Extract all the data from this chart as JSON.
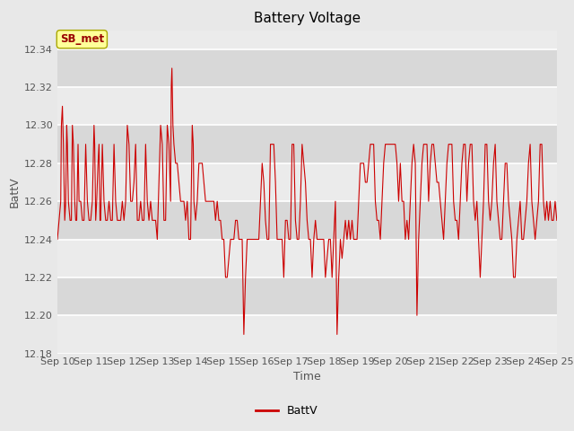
{
  "title": "Battery Voltage",
  "xlabel": "Time",
  "ylabel": "BattV",
  "legend_label": "BattV",
  "annotation_text": "SB_met",
  "ylim": [
    12.18,
    12.35
  ],
  "line_color": "#cc0000",
  "bg_color": "#e0e0e0",
  "band_light": "#ebebeb",
  "band_dark": "#d8d8d8",
  "annotation_bg": "#ffff99",
  "annotation_border": "#aaa800",
  "annotation_text_color": "#990000",
  "yticks": [
    12.18,
    12.2,
    12.22,
    12.24,
    12.26,
    12.28,
    12.3,
    12.32,
    12.34
  ],
  "x_tick_labels": [
    "Sep 10",
    "Sep 11",
    "Sep 12",
    "Sep 13",
    "Sep 14",
    "Sep 15",
    "Sep 16",
    "Sep 17",
    "Sep 18",
    "Sep 19",
    "Sep 20",
    "Sep 21",
    "Sep 22",
    "Sep 23",
    "Sep 24",
    "Sep 25"
  ],
  "x_values": [
    0,
    0.05,
    0.1,
    0.12,
    0.15,
    0.18,
    0.22,
    0.25,
    0.28,
    0.3,
    0.33,
    0.38,
    0.42,
    0.45,
    0.48,
    0.52,
    0.55,
    0.58,
    0.62,
    0.65,
    0.7,
    0.75,
    0.8,
    0.85,
    0.9,
    0.95,
    1.0,
    1.05,
    1.1,
    1.12,
    1.15,
    1.18,
    1.22,
    1.25,
    1.28,
    1.3,
    1.35,
    1.4,
    1.45,
    1.5,
    1.55,
    1.6,
    1.65,
    1.7,
    1.75,
    1.8,
    1.85,
    1.9,
    1.95,
    2.0,
    2.05,
    2.1,
    2.15,
    2.2,
    2.25,
    2.3,
    2.35,
    2.4,
    2.45,
    2.5,
    2.55,
    2.6,
    2.65,
    2.7,
    2.75,
    2.8,
    2.85,
    2.9,
    2.95,
    3.0,
    3.05,
    3.1,
    3.15,
    3.2,
    3.25,
    3.3,
    3.35,
    3.4,
    3.42,
    3.44,
    3.47,
    3.5,
    3.55,
    3.6,
    3.65,
    3.7,
    3.75,
    3.8,
    3.85,
    3.9,
    3.95,
    4.0,
    4.05,
    4.08,
    4.1,
    4.15,
    4.2,
    4.25,
    4.3,
    4.35,
    4.4,
    4.45,
    4.5,
    4.55,
    4.6,
    4.65,
    4.7,
    4.75,
    4.8,
    4.85,
    4.9,
    4.95,
    5.0,
    5.05,
    5.1,
    5.15,
    5.2,
    5.25,
    5.3,
    5.35,
    5.4,
    5.45,
    5.5,
    5.55,
    5.6,
    5.65,
    5.7,
    5.75,
    5.8,
    5.85,
    5.9,
    5.95,
    6.0,
    6.05,
    6.1,
    6.15,
    6.2,
    6.25,
    6.3,
    6.35,
    6.4,
    6.45,
    6.5,
    6.55,
    6.6,
    6.65,
    6.7,
    6.75,
    6.8,
    6.85,
    6.9,
    6.95,
    7.0,
    7.05,
    7.1,
    7.15,
    7.2,
    7.25,
    7.3,
    7.35,
    7.4,
    7.45,
    7.5,
    7.55,
    7.6,
    7.65,
    7.7,
    7.75,
    7.8,
    7.85,
    7.9,
    7.95,
    8.0,
    8.05,
    8.1,
    8.15,
    8.2,
    8.25,
    8.3,
    8.35,
    8.4,
    8.45,
    8.5,
    8.55,
    8.6,
    8.65,
    8.7,
    8.75,
    8.8,
    8.85,
    8.9,
    8.95,
    9.0,
    9.05,
    9.1,
    9.15,
    9.2,
    9.25,
    9.3,
    9.35,
    9.4,
    9.45,
    9.5,
    9.55,
    9.6,
    9.65,
    9.7,
    9.75,
    9.8,
    9.85,
    9.9,
    9.95,
    10.0,
    10.05,
    10.1,
    10.15,
    10.2,
    10.25,
    10.3,
    10.35,
    10.4,
    10.45,
    10.5,
    10.55,
    10.6,
    10.65,
    10.7,
    10.75,
    10.8,
    10.85,
    10.9,
    10.95,
    11.0,
    11.05,
    11.1,
    11.15,
    11.2,
    11.25,
    11.3,
    11.35,
    11.4,
    11.45,
    11.5,
    11.55,
    11.6,
    11.65,
    11.7,
    11.75,
    11.8,
    11.85,
    11.9,
    11.95,
    12.0,
    12.05,
    12.1,
    12.15,
    12.2,
    12.25,
    12.3,
    12.35,
    12.4,
    12.45,
    12.5,
    12.55,
    12.6,
    12.65,
    12.7,
    12.75,
    12.8,
    12.85,
    12.9,
    12.95,
    13.0,
    13.05,
    13.1,
    13.15,
    13.2,
    13.25,
    13.3,
    13.35,
    13.4,
    13.45,
    13.5,
    13.55,
    13.6,
    13.65,
    13.7,
    13.75,
    13.8,
    13.85,
    13.9,
    13.95,
    14.0,
    14.05,
    14.1,
    14.15,
    14.2,
    14.25,
    14.3,
    14.35,
    14.4,
    14.45,
    14.5,
    14.55,
    14.6,
    14.65,
    14.7,
    14.75,
    14.8,
    14.85,
    14.9,
    14.95,
    15.0
  ],
  "y_values": [
    12.24,
    12.25,
    12.26,
    12.3,
    12.31,
    12.29,
    12.25,
    12.26,
    12.3,
    12.29,
    12.26,
    12.25,
    12.25,
    12.3,
    12.29,
    12.26,
    12.25,
    12.25,
    12.29,
    12.26,
    12.26,
    12.25,
    12.25,
    12.29,
    12.26,
    12.25,
    12.25,
    12.26,
    12.3,
    12.29,
    12.25,
    12.26,
    12.28,
    12.29,
    12.25,
    12.25,
    12.29,
    12.26,
    12.25,
    12.25,
    12.26,
    12.25,
    12.25,
    12.29,
    12.26,
    12.25,
    12.25,
    12.25,
    12.26,
    12.25,
    12.26,
    12.3,
    12.29,
    12.26,
    12.26,
    12.27,
    12.29,
    12.25,
    12.25,
    12.26,
    12.25,
    12.25,
    12.29,
    12.26,
    12.25,
    12.26,
    12.25,
    12.25,
    12.25,
    12.24,
    12.27,
    12.3,
    12.29,
    12.25,
    12.25,
    12.3,
    12.29,
    12.26,
    12.32,
    12.33,
    12.3,
    12.29,
    12.28,
    12.28,
    12.27,
    12.26,
    12.26,
    12.26,
    12.25,
    12.26,
    12.24,
    12.24,
    12.3,
    12.29,
    12.26,
    12.25,
    12.26,
    12.28,
    12.28,
    12.28,
    12.27,
    12.26,
    12.26,
    12.26,
    12.26,
    12.26,
    12.26,
    12.25,
    12.26,
    12.25,
    12.25,
    12.24,
    12.24,
    12.22,
    12.22,
    12.23,
    12.24,
    12.24,
    12.24,
    12.25,
    12.25,
    12.24,
    12.24,
    12.24,
    12.19,
    12.22,
    12.24,
    12.24,
    12.24,
    12.24,
    12.24,
    12.24,
    12.24,
    12.24,
    12.26,
    12.28,
    12.27,
    12.25,
    12.24,
    12.24,
    12.29,
    12.29,
    12.29,
    12.27,
    12.24,
    12.24,
    12.24,
    12.24,
    12.22,
    12.25,
    12.25,
    12.24,
    12.24,
    12.29,
    12.29,
    12.25,
    12.24,
    12.24,
    12.26,
    12.29,
    12.28,
    12.27,
    12.25,
    12.24,
    12.24,
    12.22,
    12.24,
    12.25,
    12.24,
    12.24,
    12.24,
    12.24,
    12.24,
    12.22,
    12.23,
    12.24,
    12.24,
    12.22,
    12.24,
    12.26,
    12.19,
    12.22,
    12.24,
    12.23,
    12.24,
    12.25,
    12.24,
    12.25,
    12.24,
    12.25,
    12.24,
    12.24,
    12.24,
    12.26,
    12.28,
    12.28,
    12.28,
    12.27,
    12.27,
    12.28,
    12.29,
    12.29,
    12.29,
    12.26,
    12.25,
    12.25,
    12.24,
    12.26,
    12.28,
    12.29,
    12.29,
    12.29,
    12.29,
    12.29,
    12.29,
    12.29,
    12.28,
    12.26,
    12.28,
    12.26,
    12.26,
    12.24,
    12.25,
    12.24,
    12.26,
    12.28,
    12.29,
    12.28,
    12.2,
    12.24,
    12.26,
    12.28,
    12.29,
    12.29,
    12.29,
    12.26,
    12.28,
    12.29,
    12.29,
    12.28,
    12.27,
    12.27,
    12.26,
    12.25,
    12.24,
    12.26,
    12.28,
    12.29,
    12.29,
    12.29,
    12.26,
    12.25,
    12.25,
    12.24,
    12.26,
    12.28,
    12.29,
    12.29,
    12.26,
    12.28,
    12.29,
    12.29,
    12.26,
    12.25,
    12.26,
    12.24,
    12.22,
    12.24,
    12.26,
    12.29,
    12.29,
    12.26,
    12.25,
    12.26,
    12.28,
    12.29,
    12.26,
    12.25,
    12.24,
    12.24,
    12.26,
    12.28,
    12.28,
    12.26,
    12.25,
    12.24,
    12.22,
    12.22,
    12.24,
    12.25,
    12.26,
    12.24,
    12.24,
    12.25,
    12.26,
    12.28,
    12.29,
    12.26,
    12.25,
    12.24,
    12.25,
    12.26,
    12.29,
    12.29,
    12.26,
    12.25,
    12.26,
    12.25,
    12.26,
    12.25,
    12.25,
    12.26,
    12.25
  ]
}
